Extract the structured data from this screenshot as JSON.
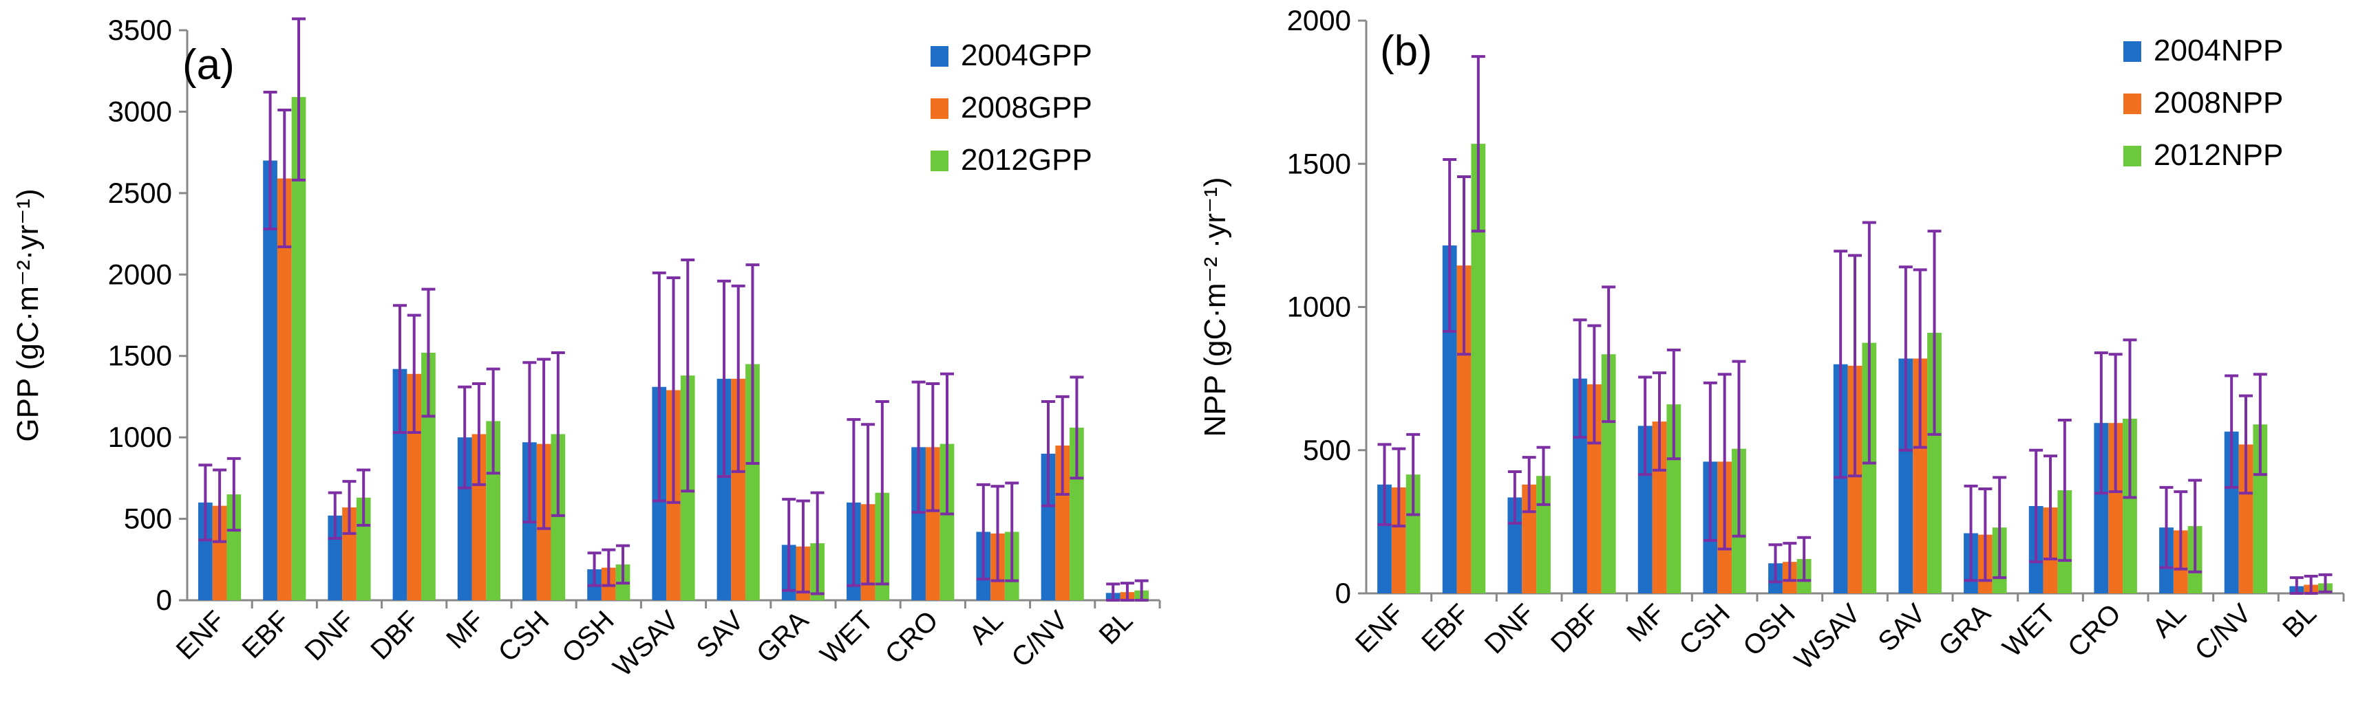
{
  "chart_data": [
    {
      "type": "bar",
      "panel": "(a)",
      "ylabel": "GPP (gC·m⁻²·yr⁻¹)",
      "ylim": [
        0,
        3500
      ],
      "yticks": [
        0,
        500,
        1000,
        1500,
        2000,
        2500,
        3000,
        3500
      ],
      "categories": [
        "ENF",
        "EBF",
        "DNF",
        "DBF",
        "MF",
        "CSH",
        "OSH",
        "WSAV",
        "SAV",
        "GRA",
        "WET",
        "CRO",
        "AL",
        "C/NV",
        "BL"
      ],
      "legend_position": "top-right",
      "series": [
        {
          "name": "2004GPP",
          "color": "#1f6fc9",
          "values": [
            600,
            2700,
            520,
            1420,
            1000,
            970,
            190,
            1310,
            1360,
            340,
            600,
            940,
            420,
            900,
            45
          ],
          "errors": [
            230,
            420,
            140,
            390,
            310,
            490,
            100,
            700,
            600,
            280,
            510,
            400,
            290,
            320,
            55
          ]
        },
        {
          "name": "2008GPP",
          "color": "#f07020",
          "values": [
            580,
            2590,
            570,
            1390,
            1020,
            960,
            200,
            1290,
            1360,
            330,
            590,
            940,
            410,
            950,
            50
          ],
          "errors": [
            220,
            420,
            160,
            360,
            310,
            520,
            110,
            690,
            570,
            280,
            490,
            390,
            290,
            300,
            55
          ]
        },
        {
          "name": "2012GPP",
          "color": "#6cc93c",
          "values": [
            650,
            3090,
            630,
            1520,
            1100,
            1020,
            220,
            1380,
            1450,
            350,
            660,
            960,
            420,
            1060,
            60
          ],
          "errors": [
            220,
            510,
            170,
            390,
            320,
            500,
            115,
            710,
            610,
            310,
            560,
            430,
            300,
            310,
            60
          ]
        }
      ]
    },
    {
      "type": "bar",
      "panel": "(b)",
      "ylabel": "NPP (gC·m⁻² ·yr⁻¹)",
      "ylim": [
        0,
        2000
      ],
      "yticks": [
        0,
        500,
        1000,
        1500,
        2000
      ],
      "categories": [
        "ENF",
        "EBF",
        "DNF",
        "DBF",
        "MF",
        "CSH",
        "OSH",
        "WSAV",
        "SAV",
        "GRA",
        "WET",
        "CRO",
        "AL",
        "C/NV",
        "BL"
      ],
      "legend_position": "top-right",
      "series": [
        {
          "name": "2004NPP",
          "color": "#1f6fc9",
          "values": [
            380,
            1215,
            335,
            750,
            585,
            460,
            105,
            800,
            820,
            210,
            305,
            595,
            230,
            565,
            25
          ],
          "errors": [
            140,
            300,
            90,
            205,
            170,
            275,
            65,
            395,
            320,
            165,
            195,
            245,
            140,
            195,
            30
          ]
        },
        {
          "name": "2008NPP",
          "color": "#f07020",
          "values": [
            370,
            1145,
            380,
            730,
            600,
            460,
            110,
            795,
            820,
            205,
            300,
            595,
            220,
            520,
            30
          ],
          "errors": [
            135,
            310,
            95,
            205,
            170,
            305,
            65,
            385,
            310,
            160,
            180,
            240,
            135,
            170,
            30
          ]
        },
        {
          "name": "2012NPP",
          "color": "#6cc93c",
          "values": [
            415,
            1570,
            410,
            835,
            660,
            505,
            120,
            875,
            910,
            230,
            360,
            610,
            235,
            590,
            35
          ],
          "errors": [
            140,
            305,
            100,
            235,
            190,
            305,
            75,
            420,
            355,
            175,
            245,
            275,
            160,
            175,
            30
          ]
        }
      ]
    }
  ]
}
